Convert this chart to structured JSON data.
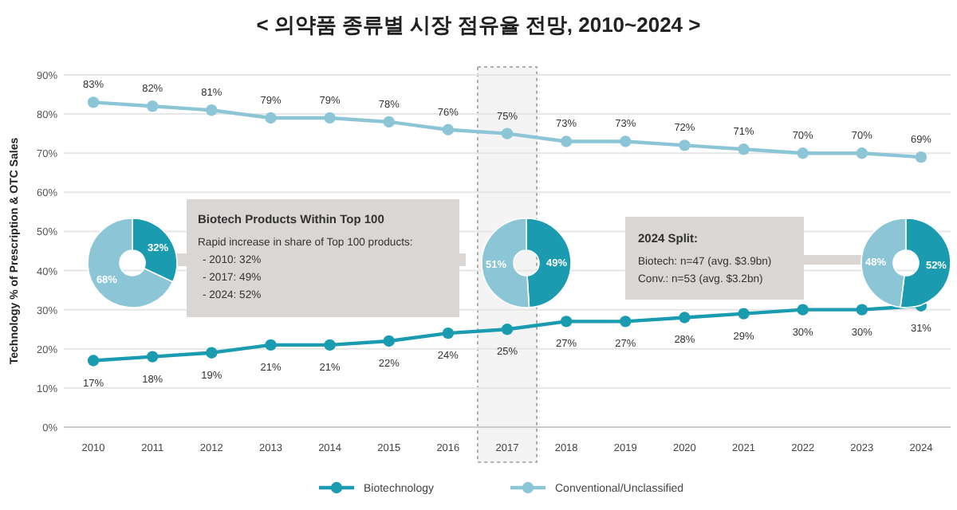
{
  "chart_data": [
    {
      "type": "line",
      "title": "< 의약품 종류별 시장 점유율 전망, 2010~2024 >",
      "ylabel": "Technology % of Prescription & OTC Sales",
      "categories": [
        "2010",
        "2011",
        "2012",
        "2013",
        "2014",
        "2015",
        "2016",
        "2017",
        "2018",
        "2019",
        "2020",
        "2021",
        "2022",
        "2023",
        "2024"
      ],
      "series": [
        {
          "name": "Biotechnology",
          "color": "#1a9bb0",
          "values": [
            17,
            18,
            19,
            21,
            21,
            22,
            24,
            25,
            27,
            27,
            28,
            29,
            30,
            30,
            31
          ],
          "value_labels": [
            "17%",
            "18%",
            "19%",
            "21%",
            "21%",
            "22%",
            "24%",
            "25%",
            "27%",
            "27%",
            "28%",
            "29%",
            "30%",
            "30%",
            "31%"
          ]
        },
        {
          "name": "Conventional/Unclassified",
          "color": "#8cc6d6",
          "values": [
            83,
            82,
            81,
            79,
            79,
            78,
            76,
            75,
            73,
            73,
            72,
            71,
            70,
            70,
            69
          ],
          "value_labels": [
            "83%",
            "82%",
            "81%",
            "79%",
            "79%",
            "78%",
            "76%",
            "75%",
            "73%",
            "73%",
            "72%",
            "71%",
            "70%",
            "70%",
            "69%"
          ]
        }
      ],
      "ylim": [
        0,
        90
      ],
      "yticks": [
        {
          "value": 0,
          "label": "0%"
        },
        {
          "value": 10,
          "label": "10%"
        },
        {
          "value": 20,
          "label": "20%"
        },
        {
          "value": 30,
          "label": "30%"
        },
        {
          "value": 40,
          "label": "40%"
        },
        {
          "value": 50,
          "label": "50%"
        },
        {
          "value": 60,
          "label": "60%"
        },
        {
          "value": 70,
          "label": "70%"
        },
        {
          "value": 80,
          "label": "80%"
        },
        {
          "value": 90,
          "label": "90%"
        }
      ],
      "grid": "y",
      "legend": "bottom",
      "marker": "circle",
      "line_style": "solid",
      "bands": [
        {
          "axis": "x",
          "from": "2017",
          "to": "2017",
          "color": "#f4f4f4"
        }
      ],
      "annotations": [
        "Biotech Products Within Top 100",
        "Rapid increase in share of Top 100 products:",
        "- 2010: 32%",
        "- 2017: 49%",
        "- 2024: 52%",
        "2024 Split:",
        "Biotech: n=47 (avg. $3.9bn)",
        "Conv.: n=53 (avg. $3.2bn)"
      ]
    },
    {
      "type": "donut",
      "categories": [
        null,
        null
      ],
      "values": [
        32,
        68
      ],
      "colors": [
        "#1a9bb0",
        "#8cc6d6"
      ],
      "value_labels": [
        "32%",
        "68%"
      ]
    },
    {
      "type": "donut",
      "categories": [
        null,
        null
      ],
      "values": [
        49,
        51
      ],
      "colors": [
        "#1a9bb0",
        "#8cc6d6"
      ],
      "value_labels": [
        "49%",
        "51%"
      ]
    },
    {
      "type": "donut",
      "categories": [
        null,
        null
      ],
      "values": [
        52,
        48
      ],
      "colors": [
        "#1a9bb0",
        "#8cc6d6"
      ],
      "value_labels": [
        "52%",
        "48%"
      ]
    }
  ]
}
